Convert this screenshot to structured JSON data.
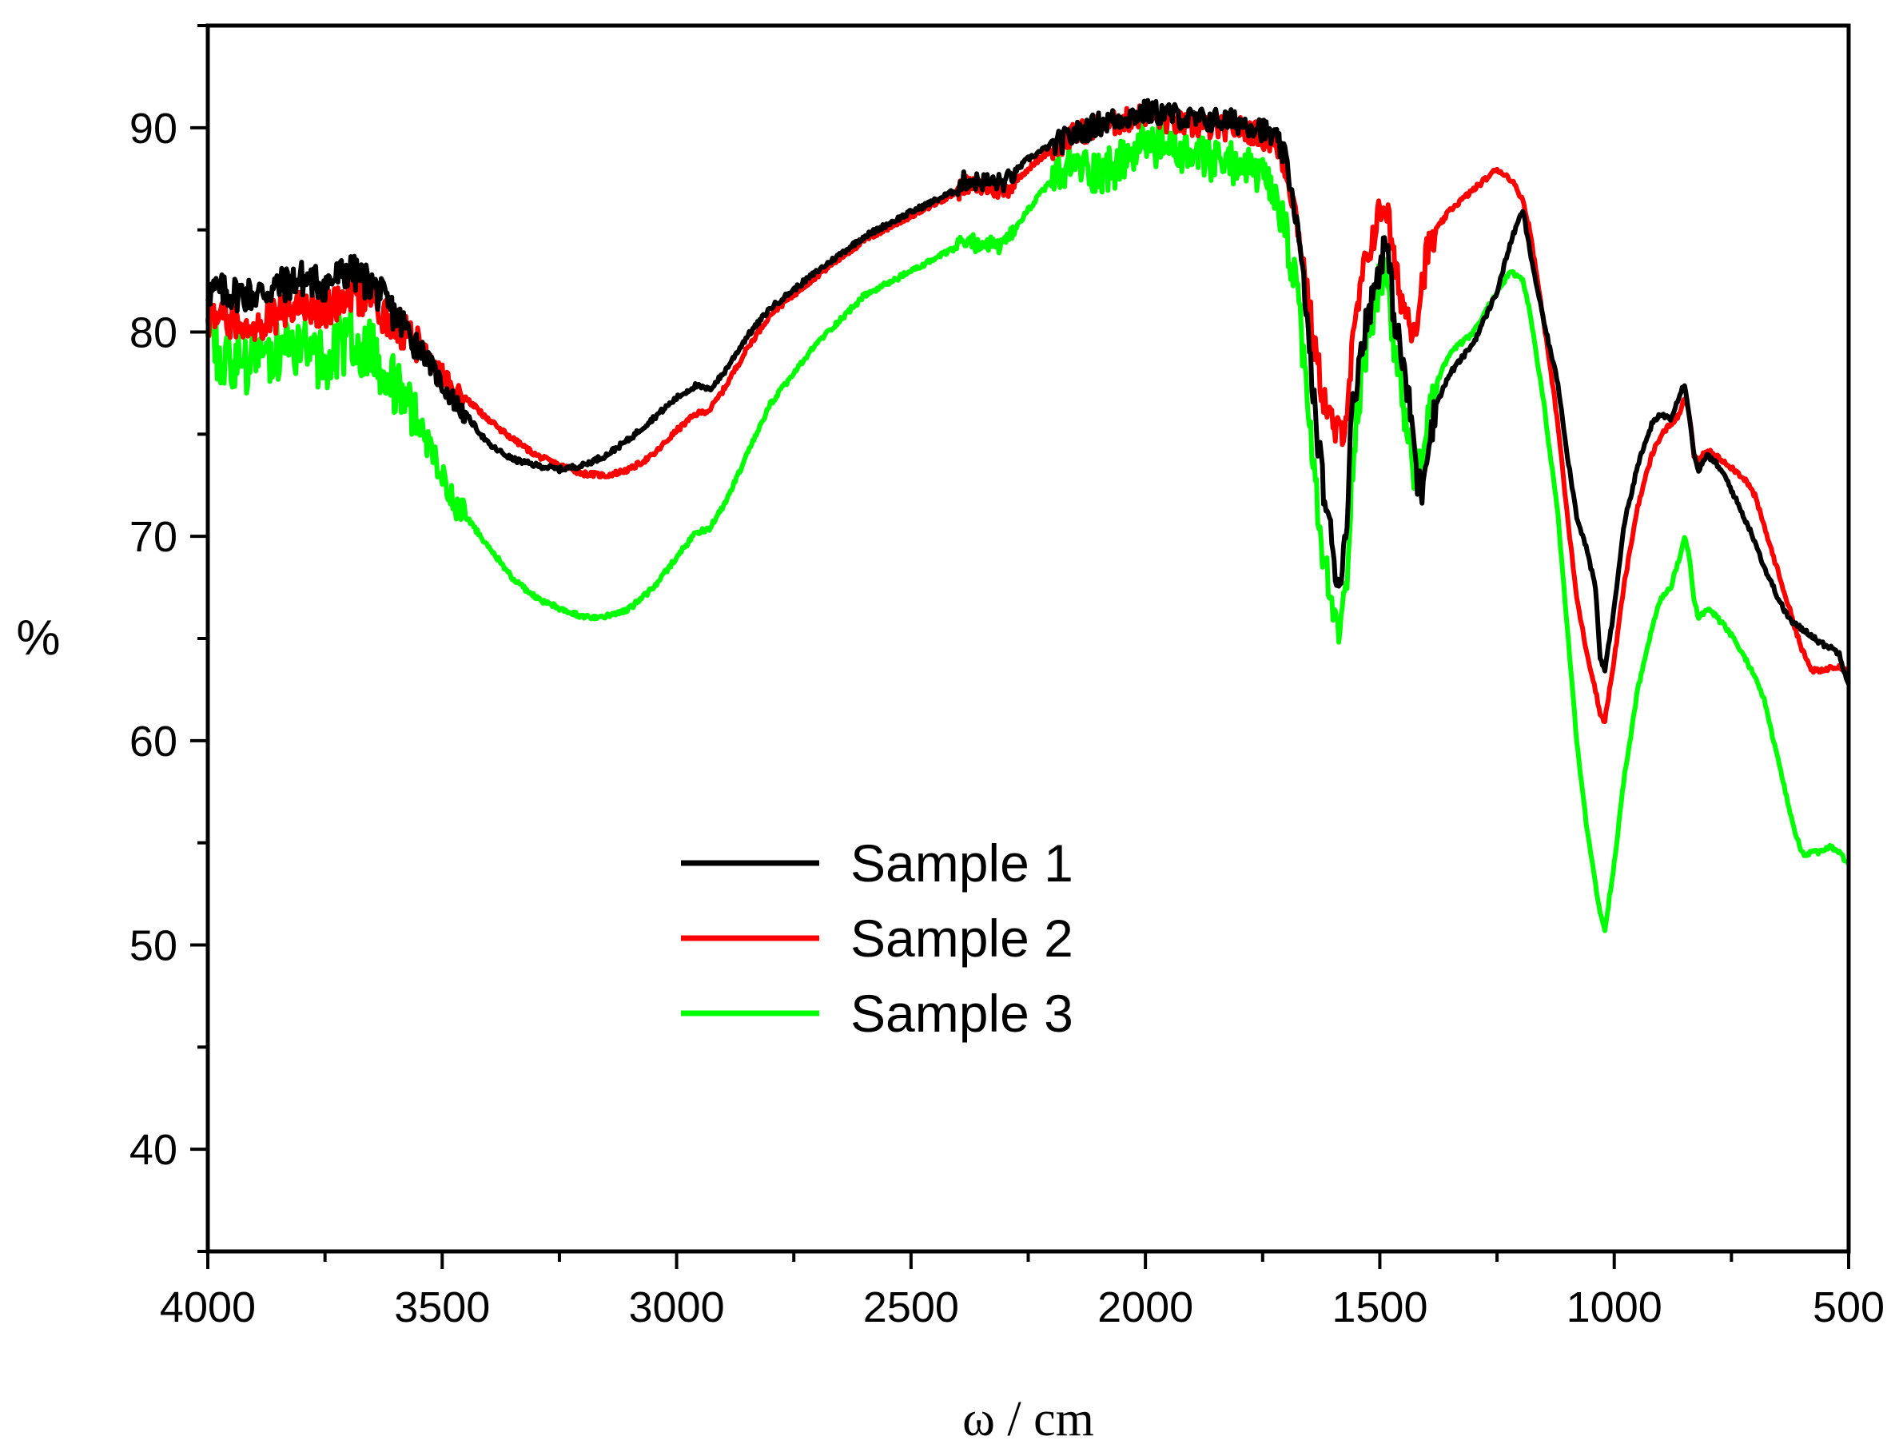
{
  "chart_data": {
    "type": "line",
    "xlabel": "ω / cm",
    "ylabel": "%",
    "xlim": [
      4000,
      500
    ],
    "ylim": [
      35,
      95
    ],
    "x_reversed": true,
    "xticks": [
      4000,
      3500,
      3000,
      2500,
      2000,
      1500,
      1000,
      500
    ],
    "yticks": [
      40,
      50,
      60,
      70,
      80,
      90
    ],
    "grid": false,
    "legend_position": "center-left",
    "series": [
      {
        "name": "Sample 1",
        "color": "#000000",
        "x": [
          4000,
          3900,
          3800,
          3750,
          3700,
          3650,
          3600,
          3550,
          3500,
          3450,
          3400,
          3350,
          3300,
          3250,
          3200,
          3150,
          3100,
          3050,
          3000,
          2960,
          2930,
          2900,
          2850,
          2800,
          2700,
          2600,
          2500,
          2400,
          2390,
          2300,
          2250,
          2200,
          2150,
          2100,
          2050,
          2000,
          1950,
          1900,
          1850,
          1800,
          1760,
          1720,
          1700,
          1680,
          1660,
          1640,
          1620,
          1600,
          1590,
          1580,
          1570,
          1560,
          1540,
          1520,
          1500,
          1490,
          1480,
          1470,
          1450,
          1430,
          1420,
          1410,
          1400,
          1380,
          1350,
          1300,
          1250,
          1220,
          1195,
          1180,
          1150,
          1120,
          1100,
          1080,
          1060,
          1040,
          1030,
          1020,
          1000,
          980,
          950,
          920,
          900,
          880,
          860,
          850,
          840,
          830,
          820,
          800,
          780,
          760,
          740,
          720,
          700,
          680,
          660,
          640,
          620,
          600,
          580,
          560,
          540,
          520,
          510,
          500
        ],
        "y": [
          82.2,
          82.0,
          82.8,
          82.5,
          83.2,
          82.5,
          81.0,
          79.5,
          77.5,
          76.0,
          74.5,
          73.8,
          73.5,
          73.3,
          73.5,
          74.0,
          74.8,
          75.8,
          76.8,
          77.4,
          77.2,
          78.0,
          79.8,
          81.2,
          83.0,
          84.7,
          85.9,
          87.0,
          87.5,
          87.4,
          88.5,
          89.2,
          89.8,
          90.3,
          90.6,
          90.9,
          90.8,
          90.5,
          90.5,
          90.4,
          90.2,
          89.5,
          88.5,
          86.0,
          82.0,
          76.5,
          72.5,
          69.5,
          68.0,
          68.5,
          71.5,
          76.0,
          79.5,
          81.5,
          83.5,
          84.5,
          83.5,
          81.0,
          78.5,
          75.5,
          72.8,
          72.5,
          74.5,
          76.5,
          78.0,
          79.5,
          82.0,
          84.5,
          86.0,
          84.0,
          80.5,
          77.5,
          74.0,
          71.0,
          69.5,
          67.5,
          64.0,
          63.5,
          66.5,
          70.5,
          73.5,
          75.5,
          76.0,
          75.8,
          77.0,
          77.5,
          76.0,
          74.0,
          73.3,
          74.0,
          73.5,
          72.8,
          71.8,
          70.8,
          69.8,
          68.5,
          67.5,
          66.5,
          65.8,
          65.5,
          65.2,
          64.8,
          64.6,
          64.3,
          63.5,
          62.8
        ]
      },
      {
        "name": "Sample 2",
        "color": "#ff0000",
        "x": [
          4000,
          3900,
          3800,
          3750,
          3700,
          3650,
          3600,
          3550,
          3500,
          3450,
          3400,
          3350,
          3300,
          3250,
          3200,
          3150,
          3100,
          3050,
          3000,
          2960,
          2930,
          2900,
          2850,
          2800,
          2700,
          2600,
          2500,
          2400,
          2390,
          2300,
          2250,
          2200,
          2150,
          2100,
          2050,
          2000,
          1950,
          1900,
          1850,
          1800,
          1760,
          1720,
          1700,
          1680,
          1660,
          1640,
          1620,
          1600,
          1590,
          1580,
          1570,
          1560,
          1540,
          1520,
          1500,
          1490,
          1480,
          1470,
          1450,
          1430,
          1420,
          1410,
          1400,
          1380,
          1350,
          1300,
          1250,
          1220,
          1195,
          1180,
          1150,
          1120,
          1100,
          1080,
          1060,
          1040,
          1030,
          1020,
          1000,
          980,
          950,
          920,
          900,
          880,
          860,
          850,
          840,
          830,
          820,
          800,
          780,
          760,
          740,
          720,
          700,
          680,
          660,
          640,
          620,
          600,
          580,
          560,
          540,
          520,
          510,
          500
        ],
        "y": [
          80.8,
          80.6,
          81.5,
          81.2,
          82.0,
          81.5,
          80.5,
          79.5,
          78.0,
          76.8,
          75.7,
          74.8,
          74.0,
          73.5,
          73.1,
          73.0,
          73.3,
          74.0,
          75.2,
          76.0,
          76.2,
          77.2,
          79.2,
          80.9,
          82.8,
          84.5,
          85.7,
          86.9,
          87.3,
          87.0,
          88.0,
          89.0,
          89.8,
          90.2,
          90.4,
          90.8,
          90.4,
          90.2,
          90.1,
          90.1,
          89.8,
          89.2,
          88.0,
          86.0,
          83.0,
          79.5,
          77.0,
          75.5,
          75.2,
          75.4,
          76.5,
          79.0,
          82.5,
          84.5,
          86.0,
          86.5,
          85.5,
          83.5,
          81.5,
          80.5,
          81.0,
          82.5,
          84.0,
          85.0,
          86.0,
          87.0,
          88.0,
          87.5,
          86.5,
          85.0,
          80.5,
          75.5,
          71.0,
          67.0,
          64.5,
          62.5,
          61.3,
          61.0,
          64.0,
          67.5,
          71.5,
          74.0,
          75.0,
          75.5,
          76.0,
          76.8,
          76.0,
          74.0,
          73.8,
          74.2,
          73.9,
          73.6,
          73.2,
          72.8,
          72.0,
          70.5,
          69.0,
          67.5,
          66.0,
          64.5,
          63.5,
          63.4,
          63.6,
          63.7,
          63.5,
          63.4
        ]
      },
      {
        "name": "Sample 3",
        "color": "#00ff00",
        "x": [
          4000,
          3900,
          3800,
          3750,
          3700,
          3650,
          3600,
          3550,
          3500,
          3450,
          3400,
          3350,
          3300,
          3250,
          3200,
          3150,
          3100,
          3050,
          3000,
          2960,
          2930,
          2900,
          2850,
          2800,
          2700,
          2600,
          2500,
          2400,
          2390,
          2300,
          2250,
          2200,
          2150,
          2100,
          2050,
          2000,
          1950,
          1900,
          1850,
          1800,
          1760,
          1720,
          1700,
          1680,
          1660,
          1640,
          1620,
          1600,
          1590,
          1580,
          1570,
          1560,
          1540,
          1520,
          1500,
          1490,
          1480,
          1470,
          1450,
          1430,
          1420,
          1410,
          1400,
          1380,
          1350,
          1300,
          1250,
          1220,
          1195,
          1180,
          1150,
          1120,
          1100,
          1080,
          1060,
          1040,
          1030,
          1020,
          1000,
          980,
          950,
          920,
          900,
          880,
          860,
          850,
          840,
          830,
          820,
          800,
          780,
          760,
          740,
          720,
          700,
          680,
          660,
          640,
          620,
          600,
          580,
          560,
          540,
          520,
          510,
          500
        ],
        "y": [
          79.3,
          78.8,
          79.5,
          79.0,
          80.0,
          79.5,
          77.5,
          75.5,
          73.0,
          71.0,
          69.5,
          68.0,
          67.0,
          66.5,
          66.1,
          66.1,
          66.5,
          67.5,
          69.0,
          70.2,
          70.4,
          71.5,
          74.0,
          76.5,
          79.5,
          81.8,
          83.0,
          84.2,
          84.5,
          84.3,
          86.0,
          87.5,
          88.5,
          88.0,
          88.5,
          89.5,
          89.2,
          88.8,
          88.5,
          88.5,
          88.0,
          86.5,
          85.0,
          82.5,
          78.5,
          73.0,
          69.0,
          66.5,
          65.8,
          66.0,
          68.5,
          73.5,
          78.0,
          81.0,
          82.5,
          83.5,
          82.0,
          79.5,
          76.5,
          74.0,
          73.0,
          73.5,
          75.5,
          77.5,
          79.0,
          80.0,
          82.0,
          83.0,
          82.5,
          81.0,
          76.5,
          71.0,
          65.5,
          60.0,
          56.0,
          53.0,
          51.5,
          50.8,
          54.0,
          58.0,
          62.5,
          65.5,
          67.0,
          67.5,
          69.0,
          70.0,
          69.0,
          67.0,
          66.0,
          66.5,
          66.0,
          65.5,
          64.8,
          64.0,
          63.2,
          62.0,
          60.0,
          58.0,
          56.0,
          54.5,
          54.5,
          54.6,
          54.8,
          54.6,
          54.2,
          54.0
        ]
      }
    ]
  }
}
